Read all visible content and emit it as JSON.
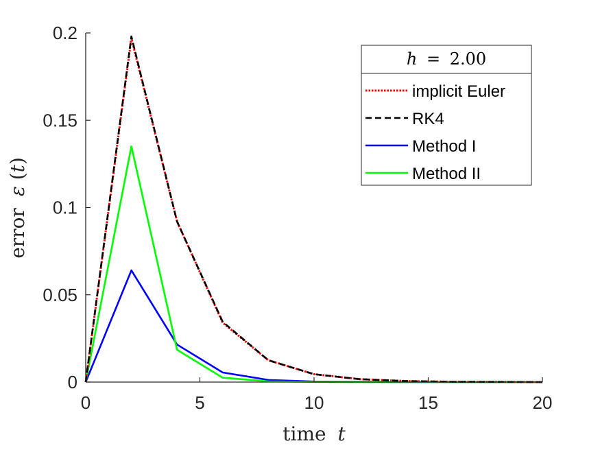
{
  "chart_data": {
    "type": "line",
    "xlabel_prefix": "time",
    "xlabel_var": "t",
    "ylabel_prefix": "error",
    "ylabel_symbol": "ε",
    "ylabel_arg": "t",
    "xlim": [
      0,
      20
    ],
    "ylim": [
      0,
      0.2
    ],
    "xticks": [
      0,
      5,
      10,
      15,
      20
    ],
    "xtick_labels": [
      "0",
      "5",
      "10",
      "15",
      "20"
    ],
    "yticks": [
      0,
      0.05,
      0.1,
      0.15,
      0.2
    ],
    "ytick_labels": [
      "0",
      "0.05",
      "0.1",
      "0.15",
      "0.2"
    ],
    "grid": false,
    "legend": {
      "title_var": "h",
      "title_value": "2.00",
      "placement": "top-right"
    },
    "series": [
      {
        "name": "implicit Euler",
        "color": "#ff0000",
        "style": "dotted",
        "x": [
          0,
          2,
          4,
          6,
          8,
          10,
          12,
          14,
          16,
          18,
          20
        ],
        "values": [
          0,
          0.197,
          0.092,
          0.034,
          0.0125,
          0.0045,
          0.0017,
          0.0006,
          0.0002,
          0.0001,
          0.0
        ]
      },
      {
        "name": "RK4",
        "color": "#000000",
        "style": "dashed",
        "x": [
          0,
          2,
          4,
          6,
          8,
          10,
          12,
          14,
          16,
          18,
          20
        ],
        "values": [
          0,
          0.198,
          0.092,
          0.0345,
          0.0125,
          0.0045,
          0.0017,
          0.0006,
          0.0002,
          0.0001,
          0.0
        ]
      },
      {
        "name": "Method I",
        "color": "#0000ff",
        "style": "solid",
        "x": [
          0,
          2,
          4,
          6,
          8,
          10,
          12,
          14,
          16,
          18,
          20
        ],
        "values": [
          0,
          0.064,
          0.0215,
          0.0055,
          0.0012,
          0.0003,
          0.0001,
          0.0,
          0.0,
          0.0,
          0.0
        ]
      },
      {
        "name": "Method II",
        "color": "#00ff00",
        "style": "solid",
        "x": [
          0,
          2,
          4,
          6,
          8,
          10,
          12,
          14,
          16,
          18,
          20
        ],
        "values": [
          0,
          0.135,
          0.0185,
          0.0025,
          0.0004,
          0.0001,
          0.0,
          0.0,
          0.0,
          0.0,
          0.0
        ]
      }
    ]
  }
}
